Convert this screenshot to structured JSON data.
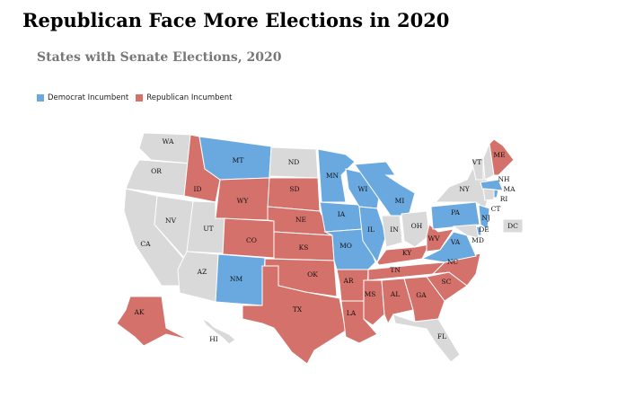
{
  "title": "Republican Face More Elections in 2020",
  "subtitle": "States with Senate Elections, 2020",
  "legend": [
    {
      "label": "Democrat Incumbent",
      "color": "#6aa9e0"
    },
    {
      "label": "Republican Incumbent",
      "color": "#d4716a"
    }
  ],
  "colors": {
    "D": "#6aa9e0",
    "R": "#d4716a",
    "none": "#d9d9d9"
  },
  "states": [
    {
      "code": "WA",
      "party": "none"
    },
    {
      "code": "OR",
      "party": "none"
    },
    {
      "code": "CA",
      "party": "none"
    },
    {
      "code": "NV",
      "party": "none"
    },
    {
      "code": "ID",
      "party": "R"
    },
    {
      "code": "MT",
      "party": "D"
    },
    {
      "code": "WY",
      "party": "R"
    },
    {
      "code": "UT",
      "party": "none"
    },
    {
      "code": "CO",
      "party": "R"
    },
    {
      "code": "AZ",
      "party": "none"
    },
    {
      "code": "NM",
      "party": "D"
    },
    {
      "code": "ND",
      "party": "none"
    },
    {
      "code": "SD",
      "party": "R"
    },
    {
      "code": "NE",
      "party": "R"
    },
    {
      "code": "KS",
      "party": "R"
    },
    {
      "code": "OK",
      "party": "R"
    },
    {
      "code": "TX",
      "party": "R"
    },
    {
      "code": "MN",
      "party": "D"
    },
    {
      "code": "IA",
      "party": "D"
    },
    {
      "code": "MO",
      "party": "D"
    },
    {
      "code": "AR",
      "party": "R"
    },
    {
      "code": "LA",
      "party": "R"
    },
    {
      "code": "WI",
      "party": "D"
    },
    {
      "code": "IL",
      "party": "D"
    },
    {
      "code": "MI",
      "party": "D"
    },
    {
      "code": "IN",
      "party": "none"
    },
    {
      "code": "OH",
      "party": "none"
    },
    {
      "code": "KY",
      "party": "R"
    },
    {
      "code": "TN",
      "party": "R"
    },
    {
      "code": "MS",
      "party": "R"
    },
    {
      "code": "AL",
      "party": "R"
    },
    {
      "code": "GA",
      "party": "R"
    },
    {
      "code": "FL",
      "party": "none"
    },
    {
      "code": "SC",
      "party": "R"
    },
    {
      "code": "NC",
      "party": "R"
    },
    {
      "code": "VA",
      "party": "D"
    },
    {
      "code": "WV",
      "party": "R"
    },
    {
      "code": "PA",
      "party": "D"
    },
    {
      "code": "NY",
      "party": "none"
    },
    {
      "code": "VT",
      "party": "none"
    },
    {
      "code": "NH",
      "party": "none"
    },
    {
      "code": "ME",
      "party": "R"
    },
    {
      "code": "MA",
      "party": "D"
    },
    {
      "code": "CT",
      "party": "none"
    },
    {
      "code": "RI",
      "party": "D"
    },
    {
      "code": "NJ",
      "party": "D"
    },
    {
      "code": "DE",
      "party": "D"
    },
    {
      "code": "MD",
      "party": "none"
    },
    {
      "code": "AK",
      "party": "R"
    },
    {
      "code": "HI",
      "party": "none"
    },
    {
      "code": "DC",
      "party": "none"
    }
  ]
}
